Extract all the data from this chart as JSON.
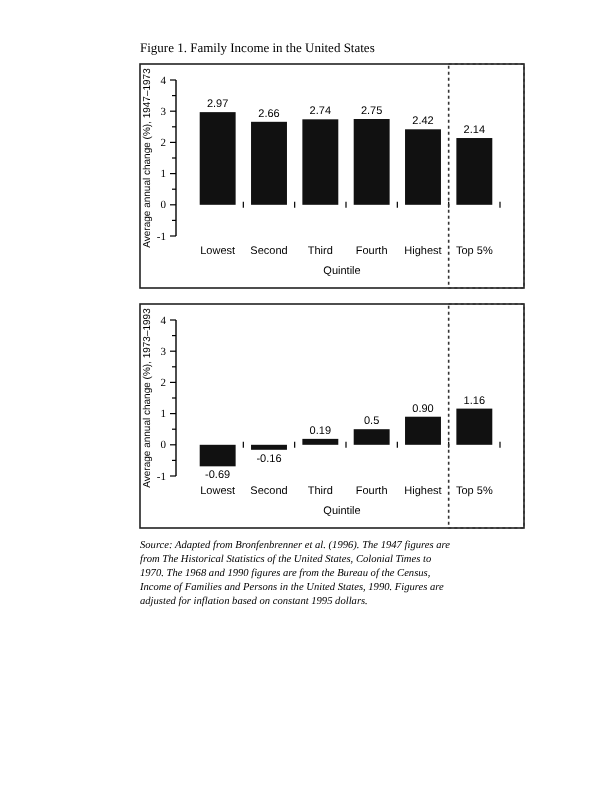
{
  "chart_data": [
    {
      "type": "bar",
      "title": "Figure 1.  Family Income in the United States",
      "categories": [
        "Lowest",
        "Second",
        "Third",
        "Fourth",
        "Highest",
        "Top 5%"
      ],
      "values": [
        2.97,
        2.66,
        2.74,
        2.75,
        2.42,
        2.14
      ],
      "value_labels": [
        "2.97",
        "2.66",
        "2.74",
        "2.75",
        "2.42",
        "2.14"
      ],
      "color": "#111111",
      "xlabel": "Quintile",
      "ylabel": "Average annual change (%), 1947–1973",
      "ylim": [
        -1,
        4
      ],
      "yticks": [
        -1,
        {
          "value": -0.5,
          "label": null
        },
        0,
        {
          "value": 0.5,
          "label": null
        },
        1,
        {
          "value": 1.5,
          "label": null
        },
        2,
        {
          "value": 2.5,
          "label": null
        },
        3,
        {
          "value": 3.5,
          "label": null
        },
        4
      ],
      "grid": false
    },
    {
      "type": "bar",
      "categories": [
        "Lowest",
        "Second",
        "Third",
        "Fourth",
        "Highest",
        "Top 5%"
      ],
      "values": [
        -0.69,
        -0.16,
        0.19,
        0.5,
        0.9,
        1.16
      ],
      "value_labels": [
        "-0.69",
        "-0.16",
        "0.19",
        "0.5",
        "0.90",
        "1.16"
      ],
      "color": "#111111",
      "xlabel": "Quintile",
      "ylabel": "Average annual change (%), 1973–1993",
      "ylim": [
        -1,
        4
      ],
      "yticks": [
        -1,
        {
          "value": -0.5,
          "label": null
        },
        0,
        {
          "value": 0.5,
          "label": null
        },
        1,
        {
          "value": 1.5,
          "label": null
        },
        2,
        {
          "value": 2.5,
          "label": null
        },
        3,
        {
          "value": 3.5,
          "label": null
        },
        4
      ],
      "grid": false,
      "annotations": [
        "Source: Adapted from Bronfenbrenner et al. (1996). The 1947 figures are from The Historical Statistics of the United States, Colonial Times to 1970. The 1968 and 1990 figures are from the Bureau of the Census, Income of Families and Persons in the United States, 1990. Figures are adjusted for inflation based on constant 1995 dollars."
      ]
    }
  ]
}
